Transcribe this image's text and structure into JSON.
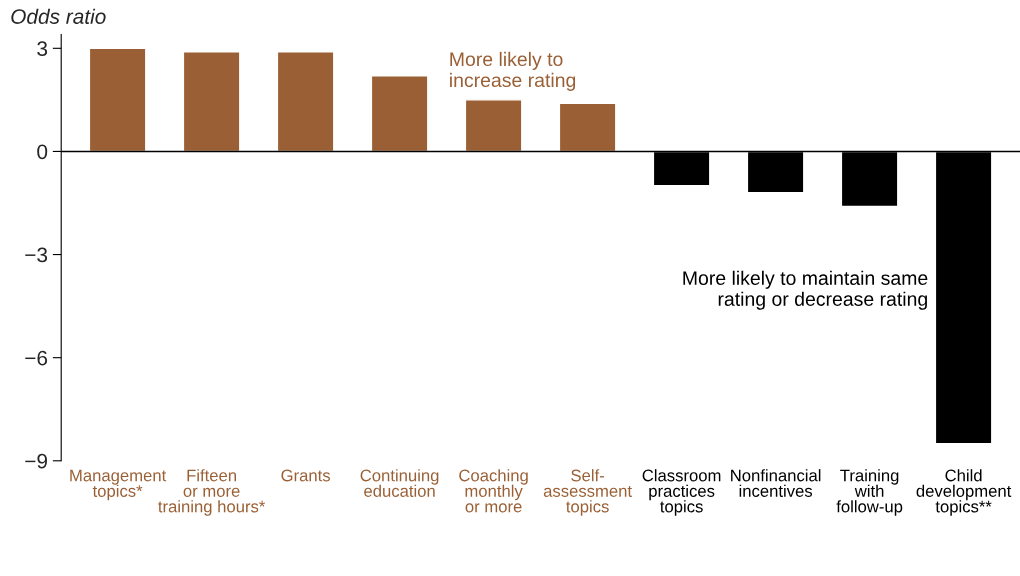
{
  "chart_data": {
    "type": "bar",
    "ylabel": "Odds ratio",
    "categories": [
      "Management\ntopics*",
      "Fifteen\nor more\ntraining hours*",
      "Grants",
      "Continuing\neducation",
      "Coaching\nmonthly\nor more",
      "Self-\nassessment\ntopics",
      "Classroom\npractices\ntopics",
      "Nonfinancial\nincentives",
      "Training\nwith\nfollow-up",
      "Child\ndevelopment\ntopics**"
    ],
    "values": [
      3.0,
      2.9,
      2.9,
      2.2,
      1.5,
      1.4,
      -1.0,
      -1.2,
      -1.6,
      -8.5
    ],
    "colors": [
      "#9a5f34",
      "#9a5f34",
      "#9a5f34",
      "#9a5f34",
      "#9a5f34",
      "#9a5f34",
      "#000000",
      "#000000",
      "#000000",
      "#000000"
    ],
    "ylim": [
      -9,
      3.4
    ],
    "yticks": [
      3,
      0,
      -3,
      -6,
      -9
    ],
    "ref_lines": [
      {
        "axis": "y",
        "value": 0,
        "color": "#000000"
      }
    ],
    "annotations": [
      "More likely to\nincrease rating",
      "More likely to maintain same\nrating or decrease rating"
    ],
    "grid": false,
    "legend": false
  }
}
